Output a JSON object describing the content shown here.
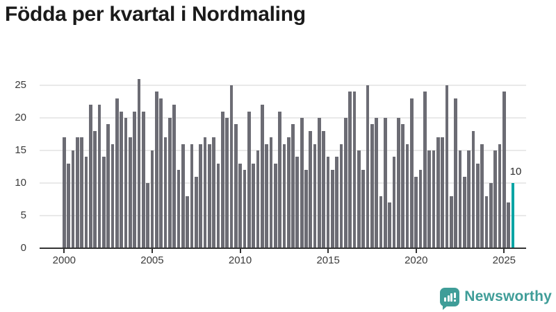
{
  "title": "Födda per kvartal i Nordmaling",
  "chart_data": {
    "type": "bar",
    "title": "Födda per kvartal i Nordmaling",
    "x_unit": "quarter",
    "start": "2000 Q1",
    "end": "2025 Q3",
    "values_by_year": {
      "2000": [
        17,
        13,
        15,
        17
      ],
      "2001": [
        17,
        14,
        22,
        18
      ],
      "2002": [
        22,
        14,
        19,
        16
      ],
      "2003": [
        23,
        21,
        20,
        17
      ],
      "2004": [
        21,
        26,
        21,
        10
      ],
      "2005": [
        15,
        24,
        23,
        17
      ],
      "2006": [
        20,
        22,
        12,
        16
      ],
      "2007": [
        8,
        16,
        11,
        16
      ],
      "2008": [
        17,
        16,
        17,
        13
      ],
      "2009": [
        21,
        20,
        25,
        19
      ],
      "2010": [
        13,
        12,
        21,
        13
      ],
      "2011": [
        15,
        22,
        16,
        17
      ],
      "2012": [
        13,
        21,
        16,
        17
      ],
      "2013": [
        19,
        14,
        20,
        12
      ],
      "2014": [
        18,
        16,
        20,
        18
      ],
      "2015": [
        14,
        12,
        14,
        16
      ],
      "2016": [
        20,
        24,
        24,
        15
      ],
      "2017": [
        12,
        25,
        19,
        20
      ],
      "2018": [
        8,
        20,
        7,
        14
      ],
      "2019": [
        20,
        19,
        16,
        23
      ],
      "2020": [
        11,
        12,
        24,
        15
      ],
      "2021": [
        15,
        17,
        17,
        25
      ],
      "2022": [
        8,
        23,
        15,
        11
      ],
      "2023": [
        15,
        18,
        13,
        16
      ],
      "2024": [
        8,
        10,
        15,
        16
      ],
      "2025": [
        24,
        7,
        10
      ]
    },
    "y_ticks": [
      0,
      5,
      10,
      15,
      20,
      25
    ],
    "x_tick_labels": [
      "2000",
      "2005",
      "2010",
      "2015",
      "2020",
      "2025"
    ],
    "ylim": [
      0,
      26
    ],
    "grid": true,
    "legend": false,
    "bar_color": "#6c6c74",
    "highlight_color": "#00a4a4",
    "highlighted_bar": "2025 Q3",
    "last_value_label": "10"
  },
  "branding": {
    "name": "Newsworthy",
    "color": "#3f9d98",
    "icon": "newsworthy-speech-bubble-chart-icon"
  }
}
